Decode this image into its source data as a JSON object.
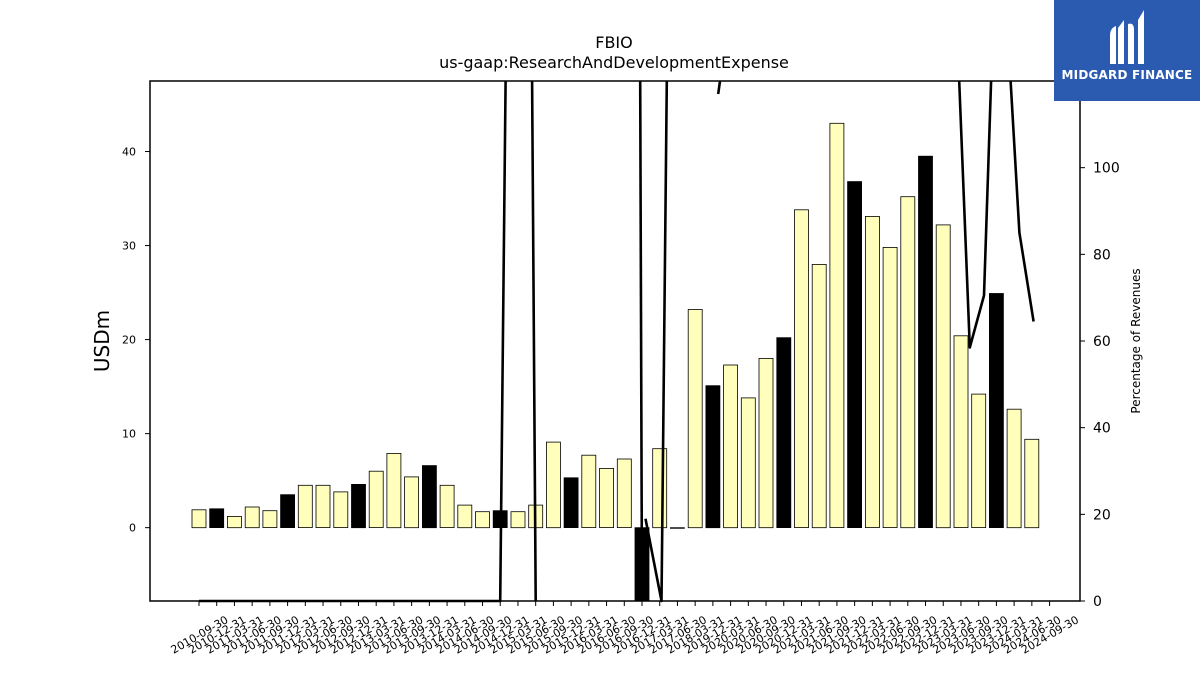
{
  "brand": {
    "name": "MIDGARD FINANCE",
    "bg_color": "#2a5bb0"
  },
  "chart_data": {
    "type": "bar",
    "title": "FBIO",
    "subtitle": "us-gaap:ResearchAndDevelopmentExpense",
    "ylabel": "USDm",
    "y2label": "Percentage of Revenues",
    "ylim": [
      -7.8,
      47.5
    ],
    "y2lim": [
      0,
      120
    ],
    "yticks": [
      0,
      10,
      20,
      30,
      40
    ],
    "y2ticks": [
      0,
      20,
      40,
      60,
      80,
      100
    ],
    "grid": false,
    "categories": [
      "2010-09-30",
      "2010-12-31",
      "2011-03-31",
      "2011-06-30",
      "2011-09-30",
      "2011-12-31",
      "2012-03-31",
      "2012-06-30",
      "2012-09-30",
      "2012-12-31",
      "2013-03-31",
      "2013-06-30",
      "2013-09-30",
      "2013-12-31",
      "2014-03-31",
      "2014-06-30",
      "2014-09-30",
      "2014-12-31",
      "2015-03-31",
      "2015-06-30",
      "2015-09-30",
      "2015-12-31",
      "2016-03-31",
      "2016-06-30",
      "2016-09-30",
      "2016-12-31",
      "2017-03-31",
      "2017-06-30",
      "2018-03-31",
      "2019-12-31",
      "2020-03-31",
      "2020-06-30",
      "2020-09-30",
      "2020-12-31",
      "2021-03-31",
      "2021-06-30",
      "2021-09-30",
      "2021-12-31",
      "2022-03-31",
      "2022-06-30",
      "2022-09-30",
      "2022-12-31",
      "2023-03-31",
      "2023-06-30",
      "2023-09-30",
      "2023-12-31",
      "2024-03-31",
      "2024-06-30",
      "2024-09-30"
    ],
    "series": [
      {
        "type": "bar",
        "axis": "left",
        "values": [
          1.9,
          2.0,
          1.2,
          2.2,
          1.8,
          3.5,
          4.5,
          4.5,
          3.8,
          4.6,
          6.0,
          7.9,
          5.4,
          6.6,
          4.5,
          2.4,
          1.7,
          1.8,
          1.7,
          2.4,
          9.1,
          5.3,
          7.7,
          6.3,
          7.3,
          -7.8,
          8.4,
          0,
          23.2,
          15.1,
          17.3,
          13.8,
          18.0,
          20.2,
          33.8,
          28.0,
          43.0,
          36.8,
          33.1,
          29.8,
          35.2,
          39.5,
          32.2,
          20.4,
          14.2,
          24.9,
          12.6,
          9.4,
          null
        ],
        "fourth_quarter_fill": "#000000",
        "other_fill": "#ffffbb"
      },
      {
        "type": "line",
        "axis": "right",
        "color": "#000000",
        "segments": [
          [
            [
              0,
              0
            ],
            [
              17,
              0
            ],
            [
              17.3,
              120
            ]
          ],
          [
            [
              18.8,
              120
            ],
            [
              19,
              0
            ]
          ],
          [
            [
              24.9,
              120
            ],
            [
              25,
              0
            ]
          ],
          [
            [
              25.2,
              19
            ],
            [
              26.1,
              0
            ],
            [
              26.4,
              120
            ]
          ],
          [
            [
              29.3,
              117
            ],
            [
              29.4,
              120
            ]
          ],
          [
            [
              42.9,
              120
            ],
            [
              43.5,
              58.5
            ],
            [
              44.3,
              70.5
            ],
            [
              44.7,
              120
            ]
          ],
          [
            [
              45.8,
              120
            ],
            [
              46.3,
              85
            ],
            [
              47.1,
              64.5
            ]
          ]
        ]
      }
    ]
  }
}
